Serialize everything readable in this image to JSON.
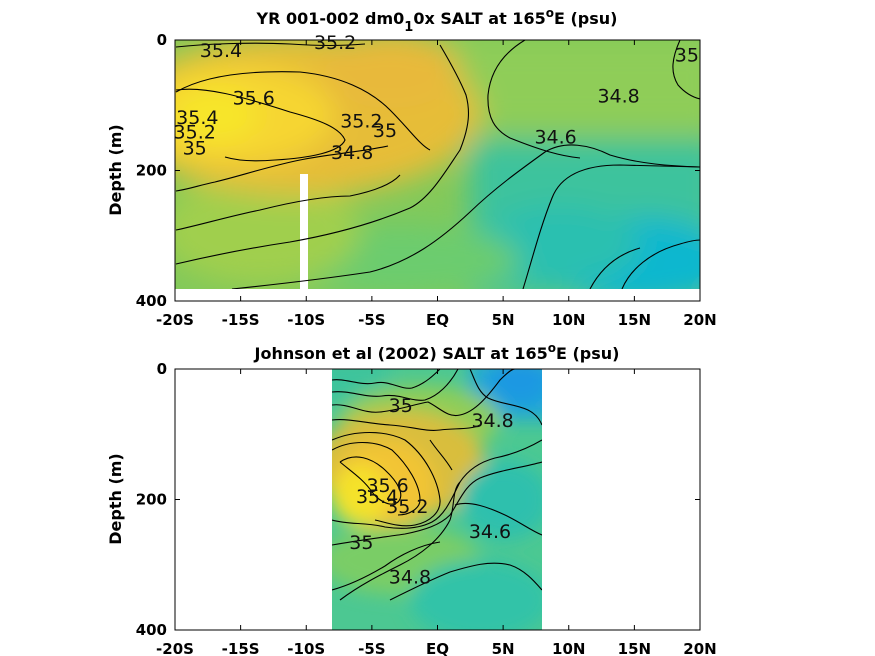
{
  "chart_data": [
    {
      "type": "heatmap",
      "title_main": "YR 001-002 dm0",
      "title_sub": "1",
      "title_rest": "0x SALT at 165",
      "title_sup": "o",
      "title_end": "E (psu)",
      "ylabel": "Depth (m)",
      "xlim": [
        -20,
        20
      ],
      "ylim": [
        400,
        0
      ],
      "x_ticks": [
        -20,
        -15,
        -10,
        -5,
        0,
        5,
        10,
        15,
        20
      ],
      "x_tick_labels": [
        "-20S",
        "-15S",
        "-10S",
        "-5S",
        "EQ",
        "5N",
        "10N",
        "15N",
        "20N"
      ],
      "y_ticks": [
        0,
        200,
        400
      ],
      "y_tick_labels": [
        "0",
        "200",
        "400"
      ],
      "data_extent": {
        "lat": [
          -20,
          20
        ],
        "depth": [
          0,
          380
        ]
      },
      "colorscale": [
        {
          "v": 34.3,
          "color": "#1a9ae0"
        },
        {
          "v": 34.5,
          "color": "#14b8c8"
        },
        {
          "v": 34.7,
          "color": "#3ac7a0"
        },
        {
          "v": 34.85,
          "color": "#6fcd6c"
        },
        {
          "v": 35.0,
          "color": "#9ccd52"
        },
        {
          "v": 35.2,
          "color": "#d6c03c"
        },
        {
          "v": 35.4,
          "color": "#f2b43a"
        },
        {
          "v": 35.55,
          "color": "#f7cc30"
        },
        {
          "v": 35.7,
          "color": "#f5e628"
        }
      ],
      "gap_lat": -10.1,
      "gap_depth_from": 205,
      "contour_labels": [
        {
          "text": "35.4",
          "lat": -16.5,
          "depth": 15
        },
        {
          "text": "35.2",
          "lat": -7.8,
          "depth": 3
        },
        {
          "text": "35",
          "lat": 19.0,
          "depth": 22
        },
        {
          "text": "35.6",
          "lat": -14.0,
          "depth": 88
        },
        {
          "text": "35.4",
          "lat": -18.3,
          "depth": 118
        },
        {
          "text": "34.8",
          "lat": 13.8,
          "depth": 85
        },
        {
          "text": "35.2",
          "lat": -18.5,
          "depth": 140
        },
        {
          "text": "35.2",
          "lat": -5.8,
          "depth": 123
        },
        {
          "text": "35",
          "lat": -4.0,
          "depth": 138
        },
        {
          "text": "34.6",
          "lat": 9.0,
          "depth": 148
        },
        {
          "text": "35",
          "lat": -18.5,
          "depth": 165
        },
        {
          "text": "34.8",
          "lat": -6.5,
          "depth": 172
        }
      ]
    },
    {
      "type": "heatmap",
      "title_main": "Johnson et al (2002) SALT at 165",
      "title_sup": "o",
      "title_end": "E (psu)",
      "ylabel": "Depth (m)",
      "xlim": [
        -20,
        20
      ],
      "ylim": [
        400,
        0
      ],
      "x_ticks": [
        -20,
        -15,
        -10,
        -5,
        0,
        5,
        10,
        15,
        20
      ],
      "x_tick_labels": [
        "-20S",
        "-15S",
        "-10S",
        "-5S",
        "EQ",
        "5N",
        "10N",
        "15N",
        "20N"
      ],
      "y_ticks": [
        0,
        200,
        400
      ],
      "y_tick_labels": [
        "0",
        "200",
        "400"
      ],
      "data_extent": {
        "lat": [
          -8,
          8
        ],
        "depth": [
          0,
          400
        ]
      },
      "contour_labels": [
        {
          "text": "35",
          "lat": -2.8,
          "depth": 55
        },
        {
          "text": "34.8",
          "lat": 4.2,
          "depth": 78
        },
        {
          "text": "35.6",
          "lat": -3.8,
          "depth": 178
        },
        {
          "text": "35.4",
          "lat": -4.6,
          "depth": 195
        },
        {
          "text": "35.2",
          "lat": -2.3,
          "depth": 210
        },
        {
          "text": "34.6",
          "lat": 4.0,
          "depth": 248
        },
        {
          "text": "35",
          "lat": -5.8,
          "depth": 265
        },
        {
          "text": "34.8",
          "lat": -2.1,
          "depth": 318
        }
      ]
    }
  ]
}
